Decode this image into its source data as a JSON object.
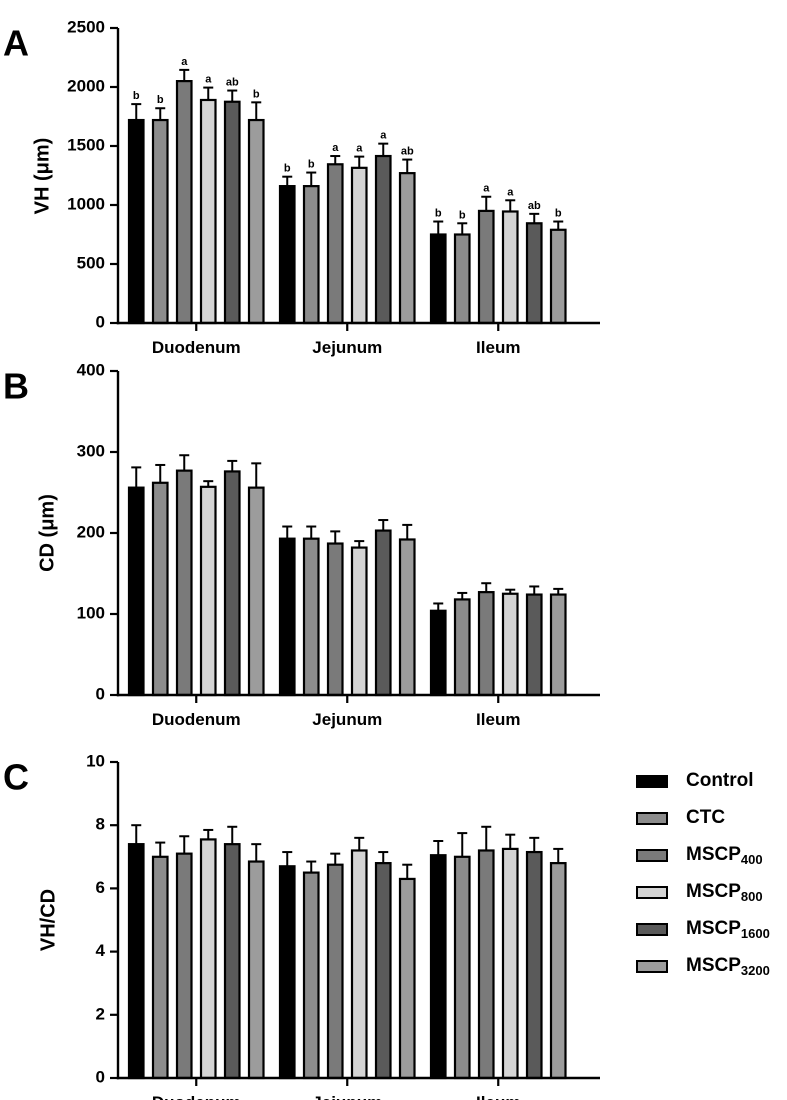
{
  "chart_data": [
    {
      "type": "bar",
      "panel_label": "A",
      "ylabel": "VH (μm)",
      "ylim": [
        0,
        2500
      ],
      "yticks": [
        0,
        500,
        1000,
        1500,
        2000,
        2500
      ],
      "categories": [
        "Duodenum",
        "Jejunum",
        "Ileum"
      ],
      "series": [
        {
          "name": "Control",
          "values": [
            1720,
            1160,
            750
          ],
          "errors": [
            135,
            80,
            110
          ],
          "letters": [
            "b",
            "b",
            "b"
          ]
        },
        {
          "name": "CTC",
          "values": [
            1720,
            1160,
            750
          ],
          "errors": [
            100,
            115,
            95
          ],
          "letters": [
            "b",
            "b",
            "b"
          ]
        },
        {
          "name": "MSCP400",
          "values": [
            2050,
            1345,
            950
          ],
          "errors": [
            95,
            70,
            120
          ],
          "letters": [
            "a",
            "a",
            "a"
          ]
        },
        {
          "name": "MSCP800",
          "values": [
            1890,
            1315,
            945
          ],
          "errors": [
            105,
            95,
            95
          ],
          "letters": [
            "a",
            "a",
            "a"
          ]
        },
        {
          "name": "MSCP1600",
          "values": [
            1875,
            1415,
            845
          ],
          "errors": [
            95,
            105,
            80
          ],
          "letters": [
            "ab",
            "a",
            "ab"
          ]
        },
        {
          "name": "MSCP3200",
          "values": [
            1720,
            1270,
            790
          ],
          "errors": [
            150,
            115,
            70
          ],
          "letters": [
            "b",
            "ab",
            "b"
          ]
        }
      ]
    },
    {
      "type": "bar",
      "panel_label": "B",
      "ylabel": "CD (μm)",
      "ylim": [
        0,
        400
      ],
      "yticks": [
        0,
        100,
        200,
        300,
        400
      ],
      "categories": [
        "Duodenum",
        "Jejunum",
        "Ileum"
      ],
      "series": [
        {
          "name": "Control",
          "values": [
            256,
            193,
            104
          ],
          "errors": [
            25,
            15,
            9
          ]
        },
        {
          "name": "CTC",
          "values": [
            262,
            193,
            118
          ],
          "errors": [
            22,
            15,
            8
          ]
        },
        {
          "name": "MSCP400",
          "values": [
            277,
            187,
            127
          ],
          "errors": [
            19,
            15,
            11
          ]
        },
        {
          "name": "MSCP800",
          "values": [
            257,
            182,
            125
          ],
          "errors": [
            7,
            8,
            5
          ]
        },
        {
          "name": "MSCP1600",
          "values": [
            276,
            203,
            124
          ],
          "errors": [
            13,
            13,
            10
          ]
        },
        {
          "name": "MSCP3200",
          "values": [
            256,
            192,
            124
          ],
          "errors": [
            30,
            18,
            7
          ]
        }
      ]
    },
    {
      "type": "bar",
      "panel_label": "C",
      "ylabel": "VH/CD",
      "ylim": [
        0,
        10
      ],
      "yticks": [
        0,
        2,
        4,
        6,
        8,
        10
      ],
      "categories": [
        "Duodenum",
        "Jejunum",
        "Ileum"
      ],
      "series": [
        {
          "name": "Control",
          "values": [
            7.4,
            6.7,
            7.05
          ],
          "errors": [
            0.6,
            0.45,
            0.45
          ]
        },
        {
          "name": "CTC",
          "values": [
            7.0,
            6.5,
            7.0
          ],
          "errors": [
            0.45,
            0.35,
            0.75
          ]
        },
        {
          "name": "MSCP400",
          "values": [
            7.1,
            6.75,
            7.2
          ],
          "errors": [
            0.55,
            0.35,
            0.75
          ]
        },
        {
          "name": "MSCP800",
          "values": [
            7.55,
            7.2,
            7.25
          ],
          "errors": [
            0.3,
            0.4,
            0.45
          ]
        },
        {
          "name": "MSCP1600",
          "values": [
            7.4,
            6.8,
            7.15
          ],
          "errors": [
            0.55,
            0.35,
            0.45
          ]
        },
        {
          "name": "MSCP3200",
          "values": [
            6.85,
            6.3,
            6.8
          ],
          "errors": [
            0.55,
            0.45,
            0.45
          ]
        }
      ]
    }
  ],
  "legend": {
    "items": [
      {
        "base": "Control",
        "sub": "",
        "color": "#000000"
      },
      {
        "base": "CTC",
        "sub": "",
        "color": "#8c8c8c"
      },
      {
        "base": "MSCP",
        "sub": "400",
        "color": "#7a7a7a"
      },
      {
        "base": "MSCP",
        "sub": "800",
        "color": "#d4d4d4"
      },
      {
        "base": "MSCP",
        "sub": "1600",
        "color": "#5a5a5a"
      },
      {
        "base": "MSCP",
        "sub": "3200",
        "color": "#9c9c9c"
      }
    ]
  }
}
